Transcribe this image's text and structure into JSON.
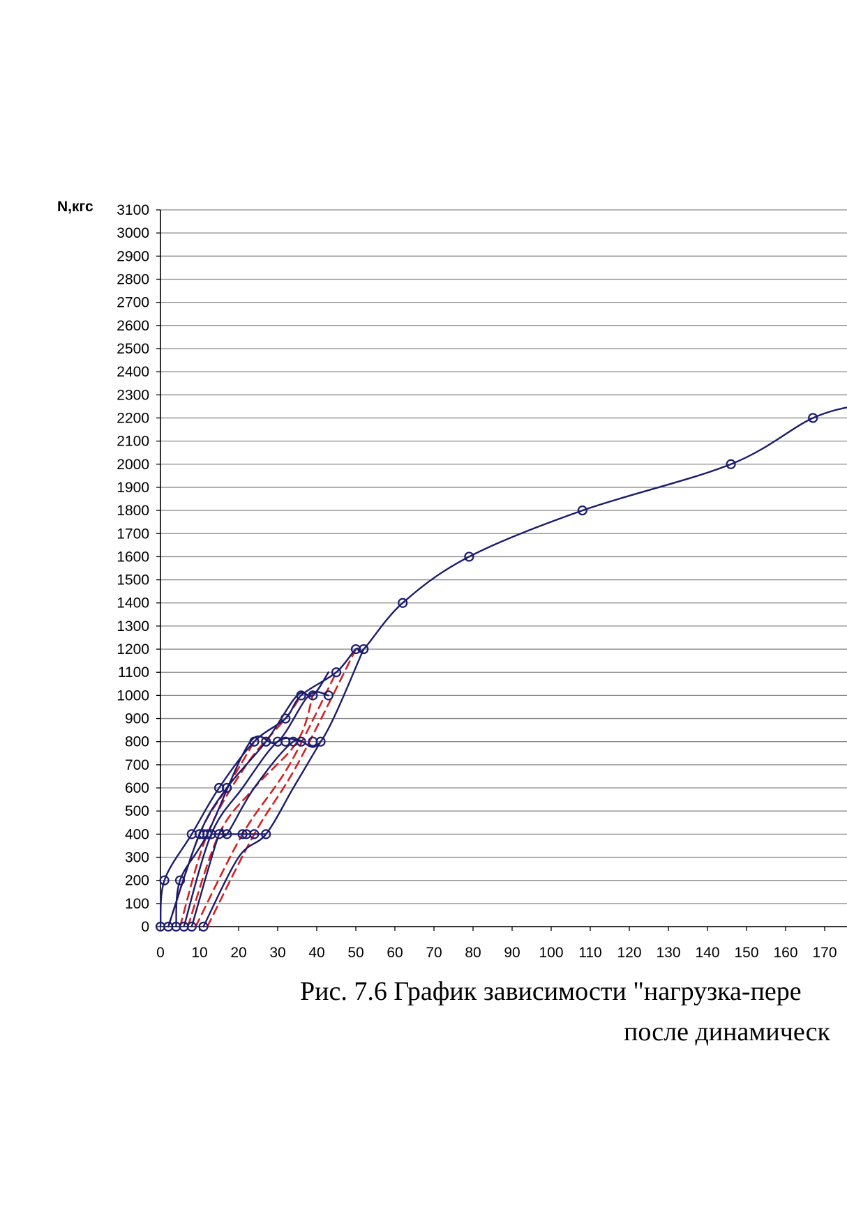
{
  "chart_data": {
    "type": "line",
    "ylabel": "N,кгс",
    "xlabel": "",
    "xlim": [
      0,
      180
    ],
    "ylim": [
      0,
      3100
    ],
    "x_ticks": [
      0,
      10,
      20,
      30,
      40,
      50,
      60,
      70,
      80,
      90,
      100,
      110,
      120,
      130,
      140,
      150,
      160,
      170
    ],
    "y_ticks": [
      0,
      100,
      200,
      300,
      400,
      500,
      600,
      700,
      800,
      900,
      1000,
      1100,
      1200,
      1300,
      1400,
      1500,
      1600,
      1700,
      1800,
      1900,
      2000,
      2100,
      2200,
      2300,
      2400,
      2500,
      2600,
      2700,
      2800,
      2900,
      3000,
      3100
    ],
    "grid": "horizontal",
    "colors": {
      "solid": "#1c1c6e",
      "dashed": "#d62020",
      "marker": "#1c1c6e"
    },
    "series": [
      {
        "style": "solid",
        "points": [
          [
            0,
            0
          ],
          [
            1,
            200
          ],
          [
            8,
            400
          ],
          [
            15,
            600
          ],
          [
            24,
            800
          ],
          [
            32,
            900
          ],
          [
            36,
            1000
          ],
          [
            45,
            1100
          ],
          [
            50,
            1200
          ],
          [
            52,
            1200
          ],
          [
            62,
            1400
          ],
          [
            79,
            1600
          ],
          [
            108,
            1800
          ],
          [
            146,
            2000
          ],
          [
            167,
            2200
          ],
          [
            180,
            2260
          ]
        ]
      },
      {
        "style": "solid",
        "points": [
          [
            2,
            0
          ],
          [
            10,
            400
          ],
          [
            17,
            600
          ],
          [
            27,
            800
          ],
          [
            35,
            1000
          ],
          [
            39,
            1000
          ],
          [
            43,
            1100
          ]
        ]
      },
      {
        "style": "solid",
        "points": [
          [
            4,
            0
          ],
          [
            5,
            200
          ],
          [
            12,
            400
          ],
          [
            23,
            800
          ],
          [
            30,
            800
          ],
          [
            38,
            1000
          ],
          [
            43,
            1000
          ]
        ]
      },
      {
        "style": "solid",
        "points": [
          [
            6,
            0
          ],
          [
            13,
            400
          ],
          [
            21,
            600
          ],
          [
            30,
            800
          ],
          [
            36,
            800
          ]
        ]
      },
      {
        "style": "solid",
        "points": [
          [
            8,
            0
          ],
          [
            15,
            400
          ],
          [
            17,
            400
          ],
          [
            24,
            600
          ],
          [
            34,
            800
          ],
          [
            41,
            800
          ],
          [
            52,
            1200
          ]
        ]
      },
      {
        "style": "solid",
        "points": [
          [
            11,
            0
          ],
          [
            20,
            300
          ],
          [
            27,
            400
          ],
          [
            34,
            600
          ],
          [
            41,
            800
          ]
        ]
      },
      {
        "style": "solid",
        "points": [
          [
            13,
            400
          ],
          [
            21,
            400
          ],
          [
            22,
            400
          ],
          [
            27,
            400
          ]
        ]
      },
      {
        "style": "dashed",
        "points": [
          [
            2,
            0
          ],
          [
            10,
            400
          ],
          [
            17,
            600
          ],
          [
            24,
            800
          ]
        ]
      },
      {
        "style": "dashed",
        "points": [
          [
            5,
            0
          ],
          [
            12,
            400
          ],
          [
            22,
            700
          ],
          [
            32,
            900
          ],
          [
            36,
            1000
          ]
        ]
      },
      {
        "style": "dashed",
        "points": [
          [
            7,
            0
          ],
          [
            15,
            400
          ],
          [
            24,
            600
          ],
          [
            35,
            800
          ],
          [
            39,
            1000
          ]
        ]
      },
      {
        "style": "dashed",
        "points": [
          [
            9,
            0
          ],
          [
            21,
            400
          ],
          [
            33,
            700
          ],
          [
            45,
            1100
          ]
        ]
      },
      {
        "style": "dashed",
        "points": [
          [
            12,
            0
          ],
          [
            24,
            400
          ],
          [
            35,
            700
          ],
          [
            50,
            1200
          ]
        ]
      }
    ],
    "markers": [
      [
        0,
        0
      ],
      [
        2,
        0
      ],
      [
        4,
        0
      ],
      [
        6,
        0
      ],
      [
        8,
        0
      ],
      [
        11,
        0
      ],
      [
        1,
        200
      ],
      [
        5,
        200
      ],
      [
        8,
        400
      ],
      [
        10,
        400
      ],
      [
        11,
        400
      ],
      [
        12,
        400
      ],
      [
        13,
        400
      ],
      [
        15,
        400
      ],
      [
        17,
        400
      ],
      [
        21,
        400
      ],
      [
        22,
        400
      ],
      [
        24,
        400
      ],
      [
        27,
        400
      ],
      [
        15,
        600
      ],
      [
        17,
        600
      ],
      [
        24,
        800
      ],
      [
        27,
        800
      ],
      [
        30,
        800
      ],
      [
        32,
        800
      ],
      [
        34,
        800
      ],
      [
        36,
        800
      ],
      [
        39,
        800
      ],
      [
        41,
        800
      ],
      [
        32,
        900
      ],
      [
        36,
        1000
      ],
      [
        39,
        1000
      ],
      [
        43,
        1000
      ],
      [
        45,
        1100
      ],
      [
        50,
        1200
      ],
      [
        52,
        1200
      ],
      [
        62,
        1400
      ],
      [
        79,
        1600
      ],
      [
        108,
        1800
      ],
      [
        146,
        2000
      ],
      [
        167,
        2200
      ]
    ]
  },
  "caption": {
    "line1": "Рис.  7.6  График зависимости \"нагрузка-пере",
    "line2": "после динамическ"
  }
}
